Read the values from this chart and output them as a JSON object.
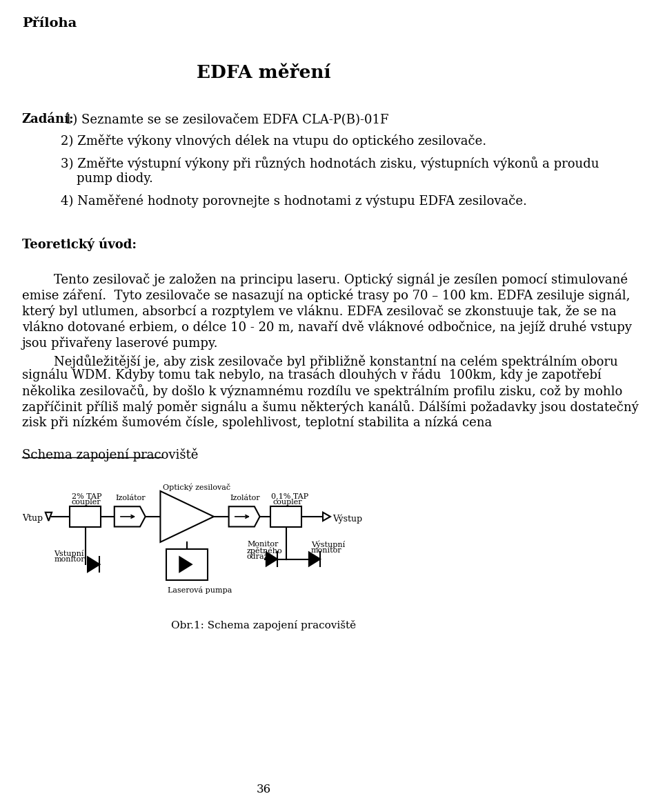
{
  "title": "EDFA měření",
  "heading": "Příloha",
  "zadani_label": "Zadání",
  "teoreticky_label": "Teoretický úvod:",
  "schema_label": "Schema zapojení pracoviště",
  "caption": "Obr.1: Schema zapojení pracoviště",
  "page_number": "36",
  "background_color": "#ffffff",
  "text_color": "#000000",
  "zadani_line1_suffix": " 1) Seznamte se se zesilovačem EDFA CLA-P(B)-01F",
  "zadani_rest": [
    [
      100,
      240,
      "2) Změřte výkony vlnových délek na vtupu do optického zesilovače."
    ],
    [
      100,
      282,
      "3) Změřte výstupní výkony při různých hodnotách zisku, výstupních výkonů a proudu"
    ],
    [
      130,
      312,
      "pump diody."
    ],
    [
      100,
      352,
      "4) Naměřené hodnoty porovnejte s hodnotami z výstupu EDFA zesilovače."
    ]
  ],
  "theo_lines": [
    "        Tento zesilovač je založen na principu laseru. Optický signál je zesílen pomocí stimulované",
    "emise záření.  Tyto zesilovače se nasazují na optické trasy po 70 – 100 km. EDFA zesiluje signál,",
    "který byl utlumen, absorbcí a rozptylem ve vláknu. EDFA zesilovač se zkonstuuje tak, že se na",
    "vlákno dotované erbiem, o délce 10 - 20 m, navaří dvě vláknové odbočnice, na jejíž druhé vstupy",
    "jsou přivařeny laserové pumpy.",
    "        Nejdůležitější je, aby zisk zesilovače byl přibližně konstantní na celém spektrálním oboru",
    "signálu WDM. Kdyby tomu tak nebylo, na trasách dlouhých v řádu  100km, kdy je zapotřebí",
    "několika zesilovačů, by došlo k významnému rozdílu ve spektrálním profilu zisku, což by mohlo",
    "zapříčinit příliš malý poměr signálu a šumu některých kanálů. Dálšími požadavky jsou dostatečný",
    "zisk při nízkém šumovém čísle, spolehlivost, teplotní stabilita a nízká cena"
  ]
}
